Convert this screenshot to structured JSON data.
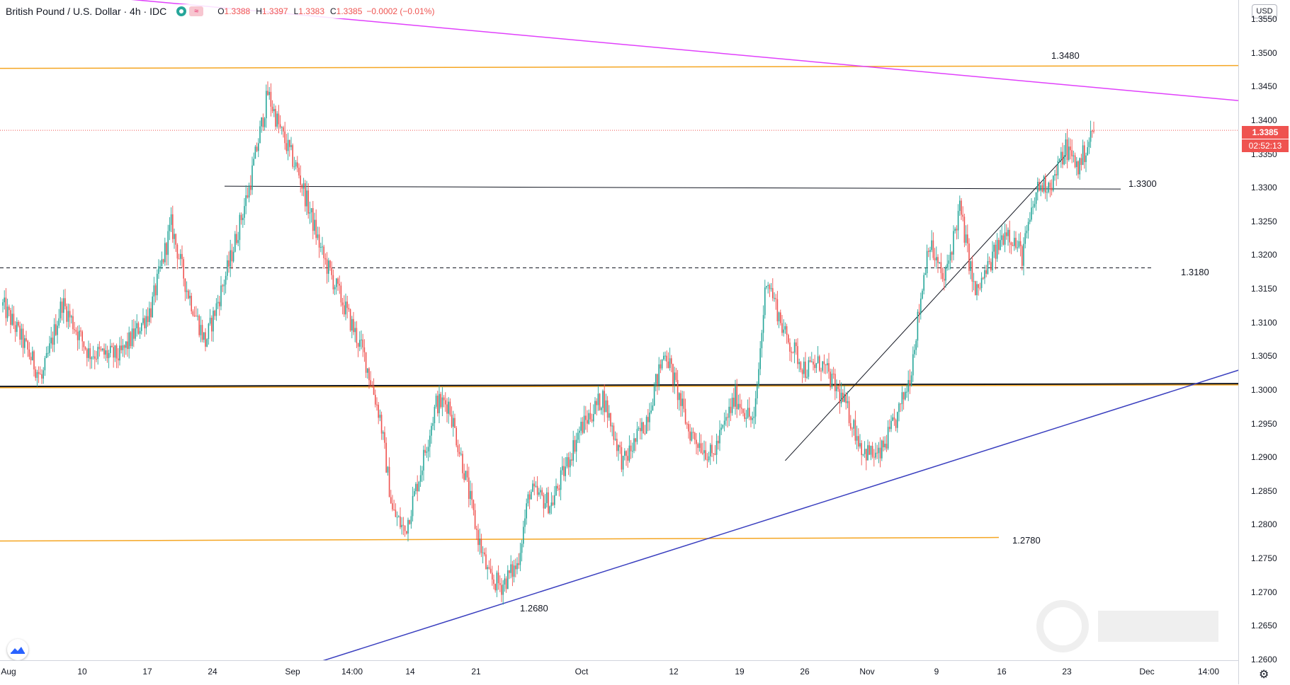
{
  "header": {
    "title": "British Pound / U.S. Dollar · 4h · IDC",
    "open_key": "O",
    "open": "1.3388",
    "high_key": "H",
    "high": "1.3397",
    "low_key": "L",
    "low": "1.3383",
    "close_key": "C",
    "close": "1.3385",
    "change": "−0.0002 (−0.01%)",
    "status_icon": "market-open-dot-icon",
    "indicator_icon": "approx-icon",
    "indicator_symbol": "≈"
  },
  "price_axis": {
    "currency": "USD",
    "ticks": [
      "1.3550",
      "1.3500",
      "1.3450",
      "1.3400",
      "1.3350",
      "1.3300",
      "1.3250",
      "1.3200",
      "1.3150",
      "1.3100",
      "1.3050",
      "1.3000",
      "1.2950",
      "1.2900",
      "1.2850",
      "1.2800",
      "1.2750",
      "1.2700",
      "1.2650",
      "1.2600"
    ],
    "last_price": "1.3385",
    "countdown": "02:52:13"
  },
  "time_axis": {
    "labels": [
      "Aug",
      "10",
      "17",
      "24",
      "Sep",
      "14:00",
      "14",
      "21",
      "Oct",
      "12",
      "19",
      "26",
      "Nov",
      "9",
      "16",
      "23",
      "Dec",
      "14:00"
    ],
    "settings_icon": "gear-icon"
  },
  "levels": {
    "r1": "1.3480",
    "r2": "1.3300",
    "r3": "1.3180",
    "s1": "1.2780",
    "low": "1.2680"
  },
  "colors": {
    "up": "#26a69a",
    "down": "#ef5350",
    "orange_level": "#f5a623",
    "magenta_trend": "#e040fb",
    "blue_trend": "#3a3fbf",
    "black_line": "#131722"
  },
  "chart_data": {
    "type": "candlestick",
    "title": "British Pound / U.S. Dollar · 4h · IDC",
    "ylabel": "USD",
    "ylim": [
      1.259,
      1.359
    ],
    "x_labels": [
      "Aug",
      "10",
      "17",
      "24",
      "Sep",
      "14:00",
      "14",
      "21",
      "Oct",
      "12",
      "19",
      "26",
      "Nov",
      "9",
      "16",
      "23",
      "Dec",
      "14:00"
    ],
    "horizontal_levels": [
      1.348,
      1.33,
      1.318,
      1.3005,
      1.278
    ],
    "anchors": [
      [
        0,
        1.3125
      ],
      [
        10,
        1.3085
      ],
      [
        25,
        1.3015
      ],
      [
        38,
        1.313
      ],
      [
        55,
        1.3055
      ],
      [
        75,
        1.305
      ],
      [
        95,
        1.312
      ],
      [
        108,
        1.3245
      ],
      [
        118,
        1.315
      ],
      [
        130,
        1.307
      ],
      [
        145,
        1.3185
      ],
      [
        158,
        1.33
      ],
      [
        170,
        1.344
      ],
      [
        178,
        1.3385
      ],
      [
        190,
        1.332
      ],
      [
        205,
        1.32
      ],
      [
        218,
        1.313
      ],
      [
        232,
        1.305
      ],
      [
        242,
        1.296
      ],
      [
        250,
        1.282
      ],
      [
        258,
        1.279
      ],
      [
        268,
        1.288
      ],
      [
        278,
        1.298
      ],
      [
        286,
        1.298
      ],
      [
        296,
        1.288
      ],
      [
        304,
        1.279
      ],
      [
        312,
        1.272
      ],
      [
        320,
        1.271
      ],
      [
        330,
        1.274
      ],
      [
        338,
        1.285
      ],
      [
        352,
        1.283
      ],
      [
        370,
        1.294
      ],
      [
        385,
        1.299
      ],
      [
        398,
        1.289
      ],
      [
        412,
        1.295
      ],
      [
        425,
        1.306
      ],
      [
        440,
        1.294
      ],
      [
        455,
        1.29
      ],
      [
        470,
        1.299
      ],
      [
        482,
        1.295
      ],
      [
        490,
        1.317
      ],
      [
        502,
        1.308
      ],
      [
        515,
        1.303
      ],
      [
        525,
        1.304
      ],
      [
        540,
        1.298
      ],
      [
        552,
        1.291
      ],
      [
        562,
        1.29
      ],
      [
        574,
        1.296
      ],
      [
        582,
        1.302
      ],
      [
        594,
        1.322
      ],
      [
        604,
        1.316
      ],
      [
        614,
        1.327
      ],
      [
        624,
        1.314
      ],
      [
        634,
        1.319
      ],
      [
        644,
        1.324
      ],
      [
        654,
        1.32
      ],
      [
        664,
        1.33
      ],
      [
        674,
        1.331
      ],
      [
        682,
        1.336
      ],
      [
        690,
        1.333
      ],
      [
        700,
        1.3386
      ]
    ],
    "n_candles": 700,
    "trendlines": [
      {
        "name": "magenta",
        "from": [
          -45,
          1.3606
        ],
        "to": [
          855,
          1.3416
        ]
      },
      {
        "name": "blue-support",
        "from": [
          201,
          1.2595
        ],
        "to": [
          862,
          1.308
        ]
      },
      {
        "name": "black-uptrend",
        "from": [
          502,
          1.2895
        ],
        "to": [
          682,
          1.3348
        ]
      }
    ]
  }
}
